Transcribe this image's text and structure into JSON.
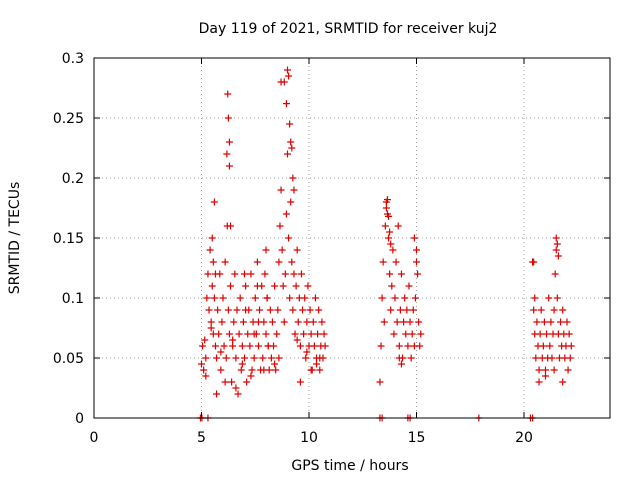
{
  "chart_data": {
    "type": "scatter",
    "title": "Day 119 of 2021, SRMTID for receiver kuj2",
    "xlabel": "GPS time / hours",
    "ylabel": "SRMTID / TECUs",
    "xlim": [
      0,
      24
    ],
    "ylim": [
      0,
      0.3
    ],
    "xticks": [
      0,
      5,
      10,
      15,
      20
    ],
    "yticks": [
      0,
      0.05,
      0.1,
      0.15,
      0.2,
      0.25,
      0.3
    ],
    "grid": true,
    "marker": "plus",
    "series": [
      {
        "color": "#e00000",
        "x": [
          5.0,
          5.05,
          5.1,
          5.15,
          5.2,
          5.25,
          5.3,
          5.35,
          5.4,
          5.45,
          5.5,
          5.55,
          5.6,
          5.65,
          5.7,
          5.75,
          5.8,
          5.85,
          5.9,
          5.95,
          6.0,
          6.05,
          6.1,
          6.15,
          6.2,
          6.25,
          6.3,
          6.35,
          6.4,
          6.45,
          6.5,
          6.55,
          6.6,
          6.65,
          6.7,
          6.75,
          6.8,
          6.85,
          6.9,
          6.95,
          7.0,
          7.05,
          7.1,
          7.15,
          7.2,
          7.25,
          7.3,
          7.35,
          7.4,
          7.45,
          7.5,
          7.55,
          7.6,
          7.65,
          7.7,
          7.75,
          7.8,
          7.85,
          7.9,
          7.95,
          8.0,
          8.05,
          8.1,
          8.15,
          8.2,
          8.25,
          8.3,
          8.35,
          8.4,
          8.45,
          8.5,
          8.55,
          8.6,
          8.65,
          8.7,
          8.75,
          8.8,
          8.85,
          8.9,
          8.95,
          9.0,
          9.05,
          9.1,
          9.15,
          9.2,
          9.25,
          9.3,
          9.35,
          9.4,
          9.45,
          9.5,
          9.55,
          9.6,
          9.65,
          9.7,
          9.75,
          9.8,
          9.85,
          9.9,
          9.95,
          10.0,
          10.05,
          10.1,
          10.15,
          10.2,
          10.25,
          10.3,
          10.35,
          10.4,
          10.45,
          10.5,
          10.55,
          10.6,
          10.65,
          10.7,
          10.75,
          6.22,
          6.25,
          6.18,
          6.3,
          8.7,
          8.85,
          9.0,
          9.05,
          8.95,
          9.1,
          9.15,
          9.2,
          9.25,
          9.3,
          5.5,
          5.55,
          5.6,
          5.65,
          6.3,
          6.35,
          7.0,
          7.05,
          7.6,
          7.65,
          8.0,
          8.05,
          5.2,
          5.7,
          6.1,
          6.6,
          7.3,
          7.9,
          8.4,
          9.6,
          10.1,
          10.5,
          5.45,
          5.9,
          6.45,
          6.9,
          7.45,
          8.1,
          8.6,
          9.45,
          9.9,
          10.35
        ],
        "y": [
          0.045,
          0.06,
          0.04,
          0.065,
          0.05,
          0.1,
          0.12,
          0.09,
          0.14,
          0.08,
          0.11,
          0.07,
          0.18,
          0.06,
          0.05,
          0.09,
          0.07,
          0.12,
          0.04,
          0.08,
          0.1,
          0.06,
          0.13,
          0.05,
          0.16,
          0.09,
          0.07,
          0.11,
          0.03,
          0.06,
          0.08,
          0.12,
          0.05,
          0.09,
          0.02,
          0.07,
          0.1,
          0.04,
          0.06,
          0.08,
          0.05,
          0.11,
          0.03,
          0.07,
          0.09,
          0.06,
          0.12,
          0.04,
          0.08,
          0.05,
          0.1,
          0.07,
          0.13,
          0.06,
          0.09,
          0.04,
          0.11,
          0.05,
          0.08,
          0.12,
          0.07,
          0.1,
          0.06,
          0.04,
          0.09,
          0.05,
          0.08,
          0.06,
          0.11,
          0.04,
          0.07,
          0.09,
          0.13,
          0.16,
          0.19,
          0.14,
          0.11,
          0.08,
          0.12,
          0.17,
          0.22,
          0.15,
          0.1,
          0.18,
          0.13,
          0.09,
          0.12,
          0.07,
          0.11,
          0.14,
          0.08,
          0.1,
          0.06,
          0.12,
          0.09,
          0.07,
          0.1,
          0.05,
          0.08,
          0.11,
          0.06,
          0.09,
          0.07,
          0.04,
          0.08,
          0.06,
          0.1,
          0.05,
          0.07,
          0.09,
          0.04,
          0.06,
          0.08,
          0.05,
          0.07,
          0.06,
          0.27,
          0.25,
          0.22,
          0.23,
          0.28,
          0.28,
          0.29,
          0.285,
          0.262,
          0.245,
          0.23,
          0.225,
          0.2,
          0.19,
          0.15,
          0.13,
          0.1,
          0.12,
          0.21,
          0.16,
          0.12,
          0.09,
          0.11,
          0.08,
          0.14,
          0.1,
          0.035,
          0.02,
          0.03,
          0.025,
          0.035,
          0.04,
          0.045,
          0.03,
          0.04,
          0.05,
          0.075,
          0.055,
          0.065,
          0.045,
          0.07,
          0.06,
          0.05,
          0.065,
          0.055,
          0.045
        ]
      },
      {
        "color": "#e00000",
        "x": [
          13.3,
          13.35,
          13.4,
          13.45,
          13.5,
          13.55,
          13.6,
          13.65,
          13.7,
          13.75,
          13.8,
          13.85,
          13.9,
          13.95,
          14.0,
          14.05,
          14.1,
          14.15,
          14.2,
          14.25,
          14.3,
          14.35,
          14.4,
          14.45,
          14.5,
          14.55,
          14.6,
          14.65,
          14.7,
          14.75,
          14.8,
          14.85,
          14.9,
          14.95,
          15.0,
          15.05,
          15.1,
          15.15,
          15.2,
          13.6,
          13.65,
          13.7,
          13.75,
          13.8,
          14.2,
          14.3,
          14.9,
          15.0
        ],
        "y": [
          0.03,
          0.06,
          0.1,
          0.13,
          0.08,
          0.16,
          0.18,
          0.17,
          0.15,
          0.12,
          0.09,
          0.11,
          0.14,
          0.07,
          0.1,
          0.13,
          0.08,
          0.16,
          0.06,
          0.09,
          0.12,
          0.05,
          0.08,
          0.1,
          0.07,
          0.09,
          0.06,
          0.11,
          0.08,
          0.05,
          0.07,
          0.09,
          0.06,
          0.1,
          0.14,
          0.12,
          0.08,
          0.06,
          0.07,
          0.175,
          0.182,
          0.168,
          0.155,
          0.145,
          0.05,
          0.045,
          0.15,
          0.13
        ]
      },
      {
        "color": "#e00000",
        "x": [
          20.4,
          20.45,
          20.5,
          20.55,
          20.6,
          20.65,
          20.7,
          20.75,
          20.8,
          20.85,
          20.9,
          20.95,
          21.0,
          21.05,
          21.1,
          21.15,
          21.2,
          21.25,
          21.3,
          21.35,
          21.4,
          21.45,
          21.5,
          21.55,
          21.6,
          21.65,
          21.7,
          21.75,
          21.8,
          21.85,
          21.9,
          21.95,
          22.0,
          22.05,
          22.1,
          22.15,
          22.2,
          20.45,
          20.5,
          21.5,
          21.55,
          21.6,
          20.7,
          21.0,
          21.4,
          21.8
        ],
        "y": [
          0.13,
          0.09,
          0.07,
          0.05,
          0.08,
          0.06,
          0.04,
          0.07,
          0.09,
          0.05,
          0.06,
          0.08,
          0.04,
          0.07,
          0.05,
          0.1,
          0.06,
          0.08,
          0.05,
          0.07,
          0.09,
          0.12,
          0.14,
          0.1,
          0.07,
          0.05,
          0.08,
          0.06,
          0.09,
          0.07,
          0.05,
          0.06,
          0.08,
          0.04,
          0.07,
          0.05,
          0.06,
          0.13,
          0.1,
          0.15,
          0.145,
          0.135,
          0.03,
          0.035,
          0.04,
          0.03
        ]
      },
      {
        "color": "#e00000",
        "x": [
          4.95,
          5.02,
          5.3,
          13.3,
          13.4,
          14.6,
          14.7,
          17.9,
          20.3,
          20.4
        ],
        "y": [
          0,
          0,
          0,
          0,
          0,
          0,
          0,
          0,
          0,
          0
        ]
      }
    ]
  }
}
